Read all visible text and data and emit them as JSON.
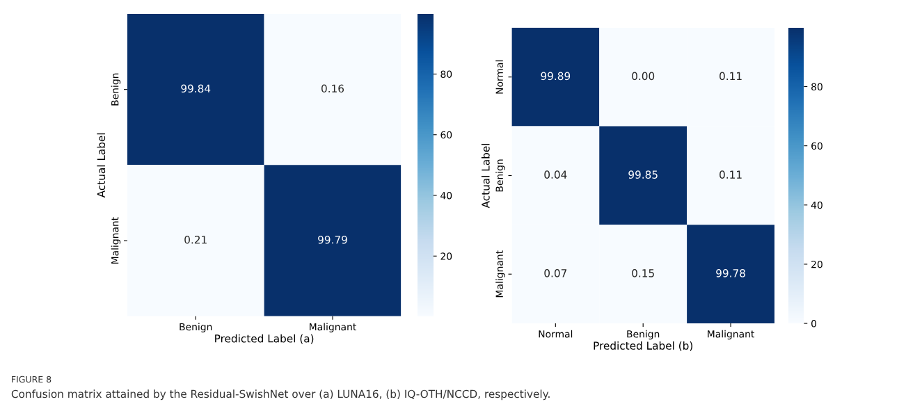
{
  "chart_data": [
    {
      "type": "heatmap",
      "xlabel": "Predicted Label (a)",
      "ylabel": "Actual Label",
      "categories": [
        "Benign",
        "Malignant"
      ],
      "y_categories": [
        "Benign",
        "Malignant"
      ],
      "cells": [
        [
          99.84,
          0.16
        ],
        [
          0.21,
          99.79
        ]
      ],
      "cell_labels": [
        [
          "99.84",
          "0.16"
        ],
        [
          "0.21",
          "99.79"
        ]
      ],
      "clim": [
        0.16,
        99.84
      ],
      "cticks": [
        20,
        40,
        60,
        80
      ],
      "annotations": [
        "FIGURE 8",
        "Confusion matrix attained by the Residual-SwishNet over (a) LUNA16, (b) IQ-OTH/NCCD, respectively."
      ]
    },
    {
      "type": "heatmap",
      "xlabel": "Predicted Label (b)",
      "ylabel": "Actual Label",
      "categories": [
        "Normal",
        "Benign",
        "Malignant"
      ],
      "y_categories": [
        "Normal",
        "Benign",
        "Malignant"
      ],
      "cells": [
        [
          99.89,
          0.0,
          0.11
        ],
        [
          0.04,
          99.85,
          0.11
        ],
        [
          0.07,
          0.15,
          99.78
        ]
      ],
      "cell_labels": [
        [
          "99.89",
          "0.00",
          "0.11"
        ],
        [
          "0.04",
          "99.85",
          "0.11"
        ],
        [
          "0.07",
          "0.15",
          "99.78"
        ]
      ],
      "clim": [
        0,
        99.89
      ],
      "cticks": [
        0,
        20,
        40,
        60,
        80
      ]
    }
  ]
}
